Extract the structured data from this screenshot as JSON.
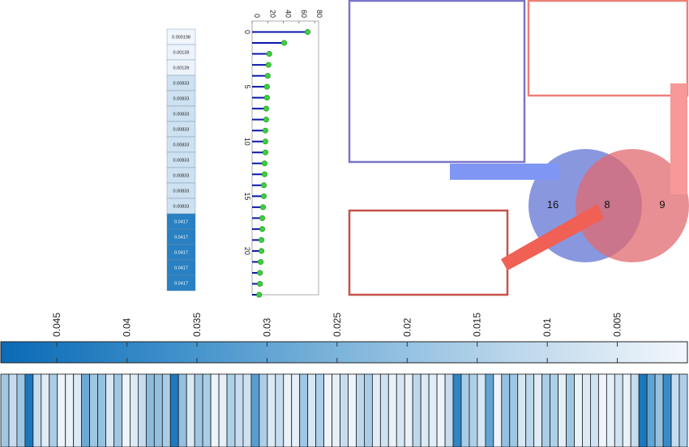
{
  "chart_data": [
    {
      "type": "heatmap",
      "orientation": "vertical-column",
      "values": [
        0.000198,
        0.00139,
        0.00139,
        0.00833,
        0.00833,
        0.00833,
        0.00833,
        0.00833,
        0.00833,
        0.00833,
        0.00833,
        0.00833,
        0.0417,
        0.0417,
        0.0417,
        0.0417,
        0.0417
      ],
      "labels": [
        "0.000198",
        "0.00139",
        "0.00139",
        "0.00833",
        "0.00833",
        "0.00833",
        "0.00833",
        "0.00833",
        "0.00833",
        "0.00833",
        "0.00833",
        "0.00833",
        "0.0417",
        "0.0417",
        "0.0417",
        "0.0417",
        "0.0417"
      ],
      "colormap": "blues"
    },
    {
      "type": "stem",
      "orientation": "horizontal",
      "values": [
        71,
        41,
        22,
        21,
        20,
        19,
        19,
        18,
        18,
        17,
        17,
        17,
        16,
        16,
        15,
        15,
        14,
        13,
        13,
        12,
        12,
        11,
        10,
        10,
        9
      ],
      "xlim": [
        0,
        85
      ],
      "ylim": [
        -1,
        24
      ],
      "xticks": [
        "0",
        "20",
        "40",
        "60",
        "80"
      ],
      "yticks": [
        "0",
        "5",
        "10",
        "15",
        "20"
      ],
      "stem_color": "#0b16a8",
      "marker_color": "#39d13a"
    },
    {
      "type": "venn",
      "sets": [
        {
          "only": "16",
          "color": "#5b6fd3"
        },
        {
          "only": "9",
          "color": "#e06a6f"
        }
      ],
      "intersection": "8",
      "callout_colors": {
        "blue_box": "#7b74c9",
        "blue_arrow": "#7f96f5",
        "salmon_box": "#ef7f79",
        "salmon_arrow": "#f89898",
        "red_box": "#c5524a",
        "red_arrow": "#f06055"
      }
    },
    {
      "type": "colorbar",
      "ticks": [
        "0.045",
        "0.04",
        "0.035",
        "0.03",
        "0.025",
        "0.02",
        "0.015",
        "0.01",
        "0.005"
      ],
      "tick_values": [
        0.045,
        0.04,
        0.035,
        0.03,
        0.025,
        0.02,
        0.015,
        0.01,
        0.005
      ],
      "range": [
        0,
        0.049
      ],
      "colormap": "blues",
      "reversed": true
    },
    {
      "type": "heatmap",
      "orientation": "horizontal-strip",
      "cell_count": 85,
      "values": [
        0.018,
        0.01,
        0.018,
        0.045,
        0.01,
        0.004,
        0.016,
        0.001,
        0.002,
        0.005,
        0.028,
        0.018,
        0.02,
        0.006,
        0.018,
        0.001,
        0.005,
        0.01,
        0.022,
        0.02,
        0.016,
        0.044,
        0.02,
        0.005,
        0.018,
        0.016,
        0.001,
        0.003,
        0.015,
        0.01,
        0.008,
        0.032,
        0.015,
        0.005,
        0.01,
        0.002,
        0.003,
        0.018,
        0.006,
        0.015,
        0.001,
        0.003,
        0.01,
        0.001,
        0.012,
        0.016,
        0.004,
        0.008,
        0.002,
        0.006,
        0.002,
        0.012,
        0.005,
        0.004,
        0.001,
        0.01,
        0.04,
        0.016,
        0.015,
        0.006,
        0.03,
        0.001,
        0.02,
        0.018,
        0.006,
        0.012,
        0.004,
        0.016,
        0.015,
        0.003,
        0.018,
        0.002,
        0.005,
        0.008,
        0.001,
        0.003,
        0.008,
        0.002,
        0.01,
        0.045,
        0.03,
        0.02,
        0.038,
        0.01,
        0.015
      ],
      "colormap": "blues"
    }
  ]
}
